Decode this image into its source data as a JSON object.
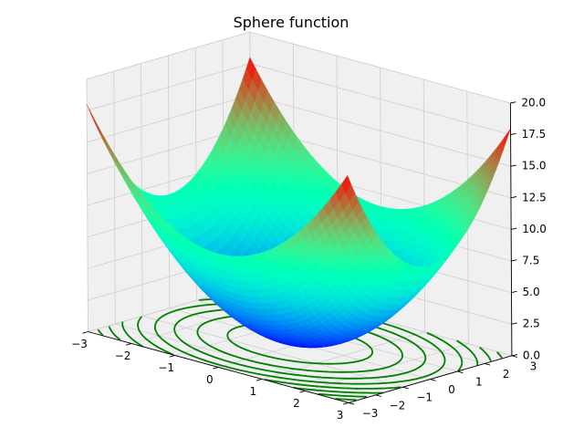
{
  "chart_data": {
    "type": "surface3d",
    "title": "Sphere function",
    "function": "z = x^2 + y^2",
    "x_range": [
      -3,
      3
    ],
    "y_range": [
      -3,
      3
    ],
    "z_range": [
      0,
      20
    ],
    "x_ticks": [
      "−3",
      "−2",
      "−1",
      "0",
      "1",
      "2",
      "3"
    ],
    "y_ticks": [
      "−3",
      "−2",
      "−1",
      "0",
      "1",
      "2",
      "3"
    ],
    "z_ticks": [
      "0.0",
      "2.5",
      "5.0",
      "7.5",
      "10.0",
      "12.5",
      "15.0",
      "17.5",
      "20.0"
    ],
    "colormap": "rainbow",
    "contour_levels_z": [
      2,
      4,
      6,
      8,
      10,
      12,
      14,
      16
    ],
    "contour_color": "#008000",
    "contour_projection": "z=0 floor",
    "grid": true,
    "pane_color": "#f0f0f0"
  }
}
